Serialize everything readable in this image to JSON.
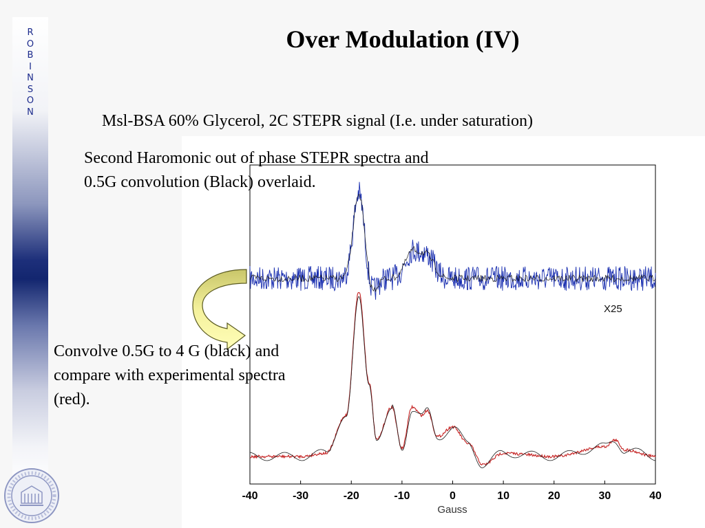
{
  "sidebar": {
    "letters": [
      "R",
      "O",
      "B",
      "I",
      "N",
      "S",
      "O",
      "N"
    ]
  },
  "slide": {
    "title": "Over Modulation (IV)",
    "subtitle": "Msl-BSA 60% Glycerol, 2C STEPR signal (I.e. under saturation)",
    "caption_top": [
      "Second Haromonic out of phase STEPR spectra and",
      "0.5G convolution (Black) overlaid."
    ],
    "caption_bottom": [
      "Convolve 0.5G to 4 G (black) and",
      "compare with experimental spectra",
      "(red)."
    ]
  },
  "chart_data": {
    "type": "line",
    "xlabel": "Gauss",
    "xlim": [
      -40,
      40
    ],
    "x_ticks": [
      -40,
      -30,
      -20,
      -10,
      0,
      10,
      20,
      30,
      40
    ],
    "annotation": "X25",
    "colors": {
      "upper_noisy": "#1a2fb0",
      "upper_fit": "#1a1a1a",
      "lower_experimental": "#c42020",
      "lower_fit": "#1a1a1a"
    },
    "upper_trace_peaks": [
      {
        "x": -18.5,
        "height": 1.0
      },
      {
        "x": -8,
        "height": 0.3
      },
      {
        "x": -5,
        "height": 0.25
      }
    ],
    "lower_trace_points": [
      [
        -40,
        0.0
      ],
      [
        -30,
        0.0
      ],
      [
        -25,
        0.02
      ],
      [
        -21,
        0.25
      ],
      [
        -18.5,
        1.0
      ],
      [
        -16.5,
        0.45
      ],
      [
        -15,
        0.1
      ],
      [
        -12,
        0.3
      ],
      [
        -10,
        0.05
      ],
      [
        -8,
        0.3
      ],
      [
        -6,
        0.25
      ],
      [
        -5,
        0.28
      ],
      [
        -3,
        0.12
      ],
      [
        0,
        0.18
      ],
      [
        3,
        0.08
      ],
      [
        6,
        -0.05
      ],
      [
        10,
        0.02
      ],
      [
        20,
        0.0
      ],
      [
        30,
        0.06
      ],
      [
        32,
        0.1
      ],
      [
        34,
        0.04
      ],
      [
        40,
        0.0
      ]
    ]
  }
}
